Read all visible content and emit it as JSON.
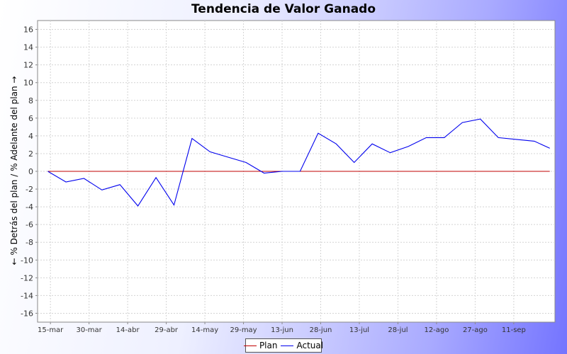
{
  "chart_data": {
    "type": "line",
    "title": "Tendencia de Valor Ganado",
    "xlabel": "",
    "ylabel": "← % Detrás del plan / % Adelante del plan →",
    "ylim": [
      -17,
      17
    ],
    "yticks": [
      -16,
      -14,
      -12,
      -10,
      -8,
      -6,
      -4,
      -2,
      0,
      2,
      4,
      6,
      8,
      10,
      12,
      14,
      16
    ],
    "xlim": [
      "2011-03-10",
      "2011-09-27"
    ],
    "xticks": [
      {
        "date": "2011-03-15",
        "label": "15-mar"
      },
      {
        "date": "2011-03-30",
        "label": "30-mar"
      },
      {
        "date": "2011-04-14",
        "label": "14-abr"
      },
      {
        "date": "2011-04-29",
        "label": "29-abr"
      },
      {
        "date": "2011-05-14",
        "label": "14-may"
      },
      {
        "date": "2011-05-29",
        "label": "29-may"
      },
      {
        "date": "2011-06-13",
        "label": "13-jun"
      },
      {
        "date": "2011-06-28",
        "label": "28-jun"
      },
      {
        "date": "2011-07-13",
        "label": "13-jul"
      },
      {
        "date": "2011-07-28",
        "label": "28-jul"
      },
      {
        "date": "2011-08-12",
        "label": "12-ago"
      },
      {
        "date": "2011-08-27",
        "label": "27-ago"
      },
      {
        "date": "2011-09-11",
        "label": "11-sep"
      }
    ],
    "grid": true,
    "legend_position": "bottom-center",
    "series": [
      {
        "name": "Plan",
        "color": "#c00000",
        "x": [
          "2011-03-14",
          "2011-09-25"
        ],
        "values": [
          0,
          0
        ]
      },
      {
        "name": "Actual",
        "color": "#0000ee",
        "x": [
          "2011-03-14",
          "2011-03-21",
          "2011-03-28",
          "2011-04-04",
          "2011-04-11",
          "2011-04-18",
          "2011-04-25",
          "2011-05-02",
          "2011-05-09",
          "2011-05-16",
          "2011-05-23",
          "2011-05-30",
          "2011-06-06",
          "2011-06-13",
          "2011-06-20",
          "2011-06-27",
          "2011-07-04",
          "2011-07-11",
          "2011-07-18",
          "2011-07-25",
          "2011-08-01",
          "2011-08-08",
          "2011-08-15",
          "2011-08-22",
          "2011-08-29",
          "2011-09-05",
          "2011-09-12",
          "2011-09-19",
          "2011-09-25"
        ],
        "values": [
          0,
          -1.2,
          -0.8,
          -2.1,
          -1.5,
          -3.9,
          -0.7,
          -3.8,
          3.7,
          2.2,
          1.6,
          1.0,
          -0.2,
          0,
          0,
          4.3,
          3.1,
          1.0,
          3.1,
          2.1,
          2.8,
          3.8,
          3.8,
          5.5,
          5.9,
          3.8,
          3.6,
          3.4,
          2.6
        ]
      }
    ]
  }
}
